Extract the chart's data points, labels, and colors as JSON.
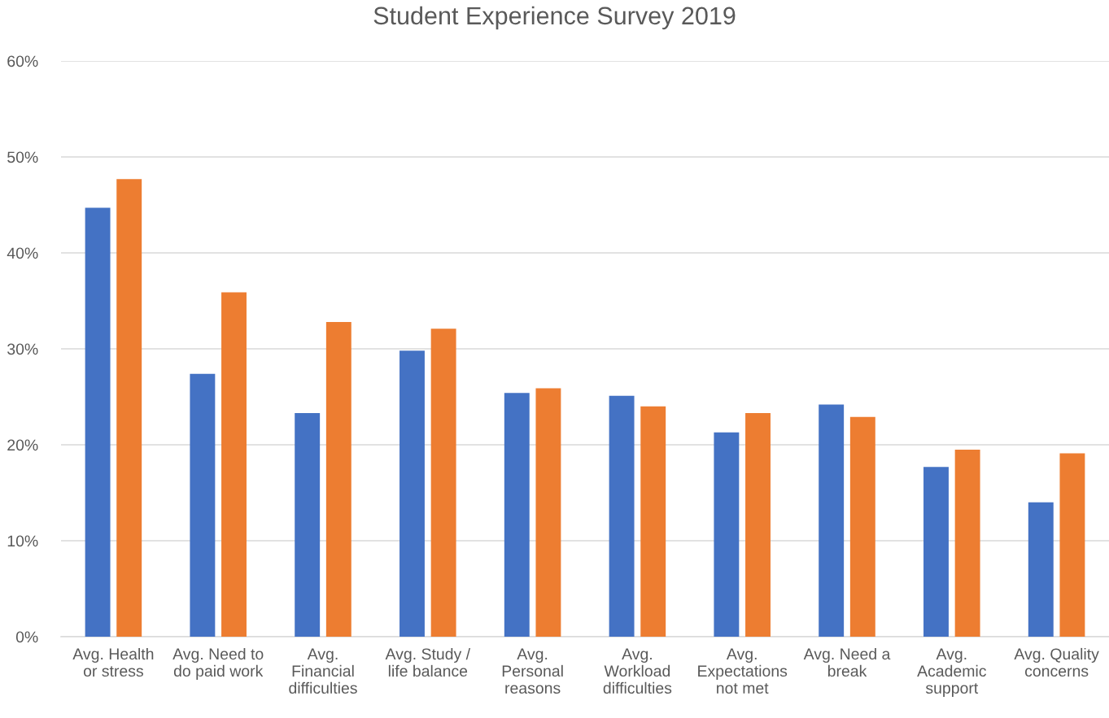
{
  "chart_data": {
    "type": "bar",
    "title": "Student Experience Survey 2019",
    "categories": [
      "Avg. Health\nor stress",
      "Avg. Need to\ndo paid work",
      "Avg.\nFinancial\ndifficulties",
      "Avg. Study /\nlife balance",
      "Avg.\nPersonal\nreasons",
      "Avg.\nWorkload\ndifficulties",
      "Avg.\nExpectations\nnot met",
      "Avg. Need a\nbreak",
      "Avg.\nAcademic\nsupport",
      "Avg. Quality\nconcerns"
    ],
    "series": [
      {
        "color": "#4472c4",
        "values": [
          44.7,
          27.4,
          23.3,
          29.8,
          25.4,
          25.1,
          21.3,
          24.2,
          17.7,
          14.0
        ]
      },
      {
        "color": "#ed7d31",
        "values": [
          47.7,
          35.9,
          32.8,
          32.1,
          25.9,
          24.0,
          23.3,
          22.9,
          19.5,
          19.1
        ]
      }
    ],
    "ylim": [
      0,
      60
    ],
    "yticks": [
      {
        "value": 0,
        "label": "0%"
      },
      {
        "value": 10,
        "label": "10%"
      },
      {
        "value": 20,
        "label": "20%"
      },
      {
        "value": 30,
        "label": "30%"
      },
      {
        "value": 40,
        "label": "40%"
      },
      {
        "value": 50,
        "label": "50%"
      },
      {
        "value": 60,
        "label": "60%"
      }
    ],
    "grid": "y"
  }
}
